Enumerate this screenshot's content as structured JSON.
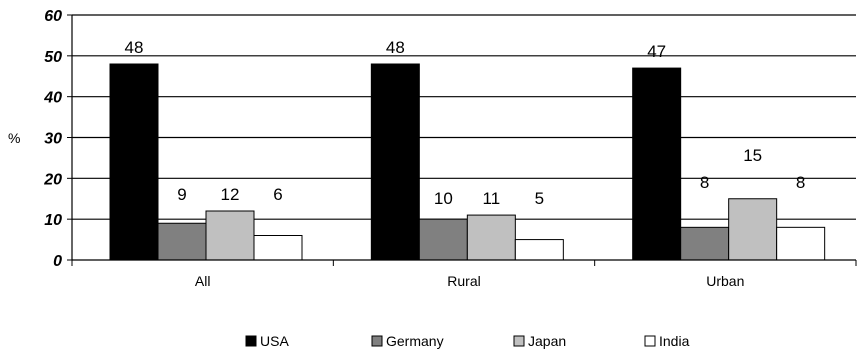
{
  "chart_data": {
    "type": "bar",
    "title": "",
    "xlabel": "",
    "ylabel": "%",
    "ylim": [
      0,
      60
    ],
    "yticks": [
      0,
      10,
      20,
      30,
      40,
      50,
      60
    ],
    "categories": [
      "All",
      "Rural",
      "Urban"
    ],
    "grid": true,
    "legend_position": "bottom",
    "series": [
      {
        "name": "USA",
        "values": [
          48,
          48,
          47
        ],
        "color": "#000000"
      },
      {
        "name": "Germany",
        "values": [
          9,
          10,
          8
        ],
        "color": "#808080"
      },
      {
        "name": "Japan",
        "values": [
          12,
          11,
          15
        ],
        "color": "#c0c0c0"
      },
      {
        "name": "India",
        "values": [
          6,
          5,
          8
        ],
        "color": "#ffffff"
      }
    ],
    "data_labels": [
      [
        48,
        9,
        12,
        6
      ],
      [
        48,
        10,
        11,
        5
      ],
      [
        47,
        8,
        15,
        8
      ]
    ]
  }
}
